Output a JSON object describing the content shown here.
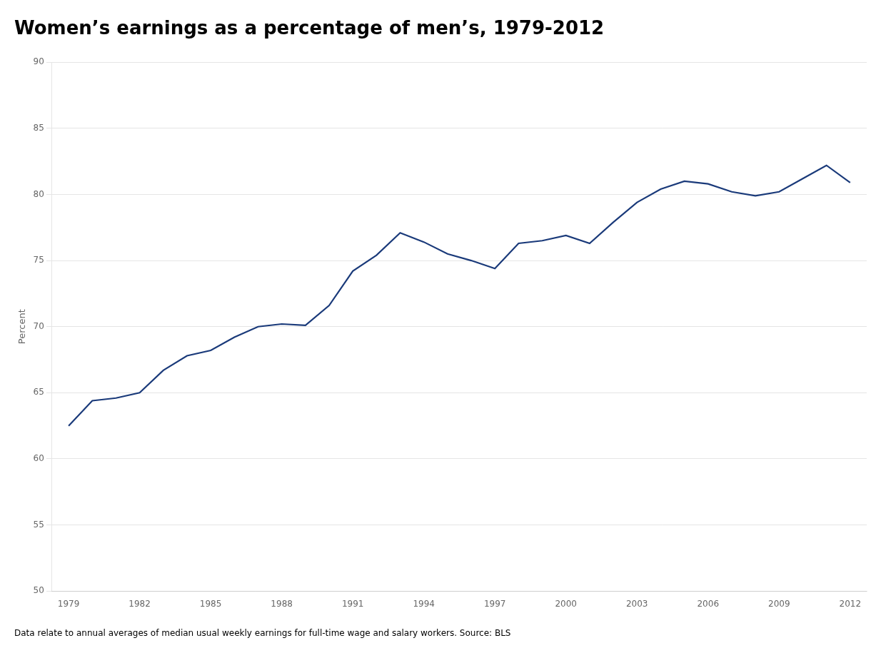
{
  "chart_data": {
    "type": "line",
    "title": "Women’s earnings as a percentage of men’s, 1979-2012",
    "ylabel": "Percent",
    "footnote": "Data relate to annual averages of median usual weekly earnings for full-time wage and salary workers. Source: BLS",
    "color": "#1a3a7a",
    "x": [
      1979,
      1980,
      1981,
      1982,
      1983,
      1984,
      1985,
      1986,
      1987,
      1988,
      1989,
      1990,
      1991,
      1992,
      1993,
      1994,
      1995,
      1996,
      1997,
      1998,
      1999,
      2000,
      2001,
      2002,
      2003,
      2004,
      2005,
      2006,
      2007,
      2008,
      2009,
      2010,
      2011,
      2012
    ],
    "values": [
      62.5,
      64.4,
      64.6,
      65.0,
      66.7,
      67.8,
      68.2,
      69.2,
      70.0,
      70.2,
      70.1,
      71.6,
      74.2,
      75.4,
      77.1,
      76.4,
      75.5,
      75.0,
      74.4,
      76.3,
      76.5,
      76.9,
      76.3,
      77.9,
      79.4,
      80.4,
      81.0,
      80.8,
      80.2,
      79.9,
      80.2,
      81.2,
      82.2,
      80.9
    ],
    "xlim": [
      1978.3,
      2012.7
    ],
    "xticks": [
      1979,
      1982,
      1985,
      1988,
      1991,
      1994,
      1997,
      2000,
      2003,
      2006,
      2009,
      2012
    ],
    "ylim": [
      50,
      90
    ],
    "yticks": [
      50,
      55,
      60,
      65,
      70,
      75,
      80,
      85,
      90
    ],
    "grid": "y"
  }
}
